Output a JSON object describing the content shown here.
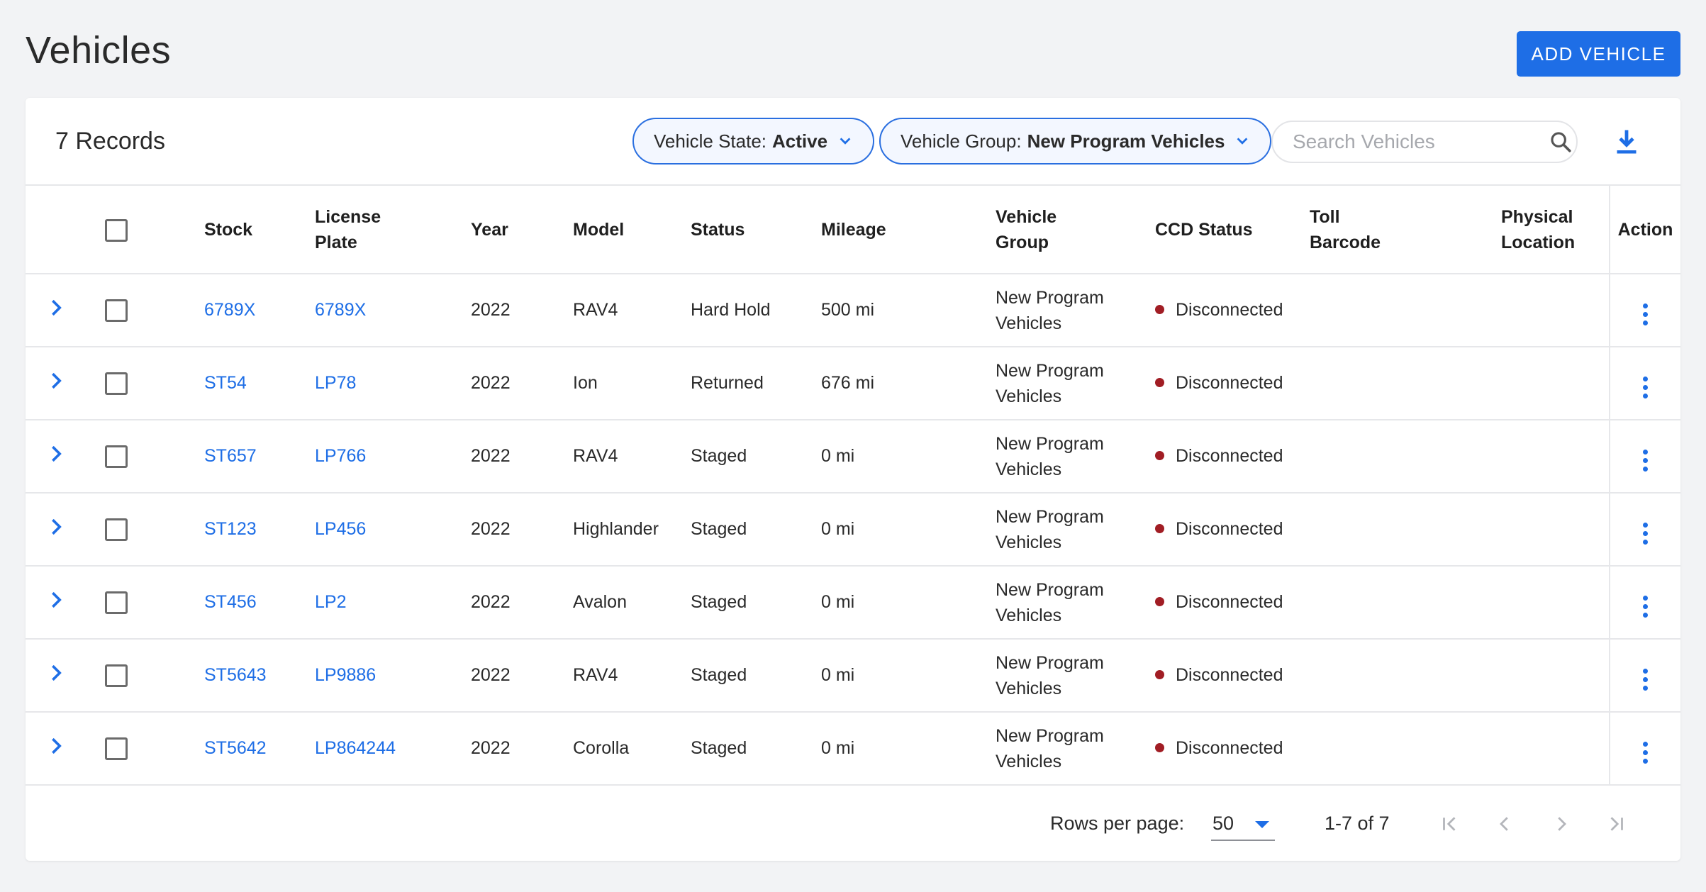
{
  "page": {
    "title": "Vehicles",
    "add_button": "ADD VEHICLE"
  },
  "toolbar": {
    "records": "7 Records",
    "filters": [
      {
        "label": "Vehicle State:",
        "value": "Active"
      },
      {
        "label": "Vehicle Group:",
        "value": "New Program Vehicles"
      }
    ],
    "search_placeholder": "Search Vehicles",
    "icons": {
      "search": "search-icon",
      "download": "download-icon"
    }
  },
  "table": {
    "headers": {
      "stock": "Stock",
      "license_plate": [
        "License",
        "Plate"
      ],
      "year": "Year",
      "model": "Model",
      "status": "Status",
      "mileage": "Mileage",
      "vehicle_group": [
        "Vehicle",
        "Group"
      ],
      "ccd_status": "CCD Status",
      "toll_barcode": [
        "Toll",
        "Barcode"
      ],
      "physical_location": [
        "Physical",
        "Location"
      ],
      "action": "Action"
    },
    "rows": [
      {
        "stock": "6789X",
        "plate": "6789X",
        "year": "2022",
        "model": "RAV4",
        "status": "Hard Hold",
        "mileage": "500 mi",
        "group": [
          "New Program",
          "Vehicles"
        ],
        "ccd": "Disconnected",
        "toll": "",
        "location": ""
      },
      {
        "stock": "ST54",
        "plate": "LP78",
        "year": "2022",
        "model": "Ion",
        "status": "Returned",
        "mileage": "676 mi",
        "group": [
          "New Program",
          "Vehicles"
        ],
        "ccd": "Disconnected",
        "toll": "",
        "location": ""
      },
      {
        "stock": "ST657",
        "plate": "LP766",
        "year": "2022",
        "model": "RAV4",
        "status": "Staged",
        "mileage": "0 mi",
        "group": [
          "New Program",
          "Vehicles"
        ],
        "ccd": "Disconnected",
        "toll": "",
        "location": ""
      },
      {
        "stock": "ST123",
        "plate": "LP456",
        "year": "2022",
        "model": "Highlander",
        "status": "Staged",
        "mileage": "0 mi",
        "group": [
          "New Program",
          "Vehicles"
        ],
        "ccd": "Disconnected",
        "toll": "",
        "location": ""
      },
      {
        "stock": "ST456",
        "plate": "LP2",
        "year": "2022",
        "model": "Avalon",
        "status": "Staged",
        "mileage": "0 mi",
        "group": [
          "New Program",
          "Vehicles"
        ],
        "ccd": "Disconnected",
        "toll": "",
        "location": ""
      },
      {
        "stock": "ST5643",
        "plate": "LP9886",
        "year": "2022",
        "model": "RAV4",
        "status": "Staged",
        "mileage": "0 mi",
        "group": [
          "New Program",
          "Vehicles"
        ],
        "ccd": "Disconnected",
        "toll": "",
        "location": ""
      },
      {
        "stock": "ST5642",
        "plate": "LP864244",
        "year": "2022",
        "model": "Corolla",
        "status": "Staged",
        "mileage": "0 mi",
        "group": [
          "New Program",
          "Vehicles"
        ],
        "ccd": "Disconnected",
        "toll": "",
        "location": ""
      }
    ]
  },
  "pagination": {
    "rows_per_page_label": "Rows per page:",
    "rows_per_page": "50",
    "range": "1-7 of 7"
  },
  "colors": {
    "accent": "#1e6ee6",
    "disconnected": "#a11d24",
    "background": "#f2f3f5"
  }
}
